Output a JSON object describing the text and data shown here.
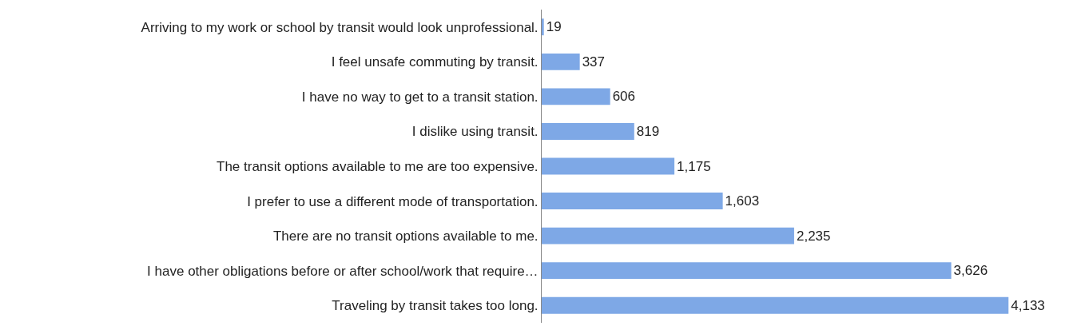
{
  "chart_data": {
    "type": "bar",
    "orientation": "horizontal",
    "value_labels": [
      "19",
      "337",
      "606",
      "819",
      "1,175",
      "1,603",
      "2,235",
      "3,626",
      "4,133"
    ],
    "color": "#7ea8e6",
    "categories": [
      "Arriving to my work or school by transit would look unprofessional.",
      "I feel unsafe commuting by transit.",
      "I have no way to get to a transit station.",
      "I dislike using transit.",
      "The transit options available to me are too expensive.",
      "I prefer to use a different mode of transportation.",
      "There are no transit options available to me.",
      "I have other obligations before or after school/work that require…",
      "Traveling by transit takes too long."
    ],
    "values": [
      19,
      337,
      606,
      819,
      1175,
      1603,
      2235,
      3626,
      4133
    ]
  }
}
